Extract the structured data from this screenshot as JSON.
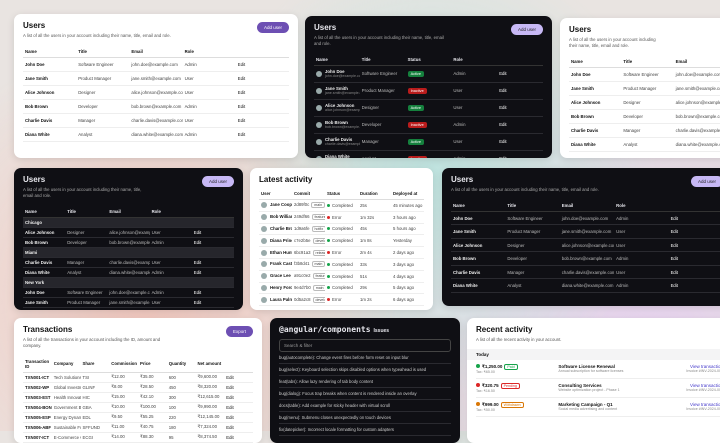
{
  "users_light": {
    "title": "Users",
    "description": "A list of all the users in your account including their name, title, email and role.",
    "button": "Add user",
    "columns": [
      "Name",
      "Title",
      "Email",
      "Role"
    ],
    "rows": [
      [
        "John Doe",
        "Software Engineer",
        "john.doe@example.com",
        "Admin",
        "Edit"
      ],
      [
        "Jane Smith",
        "Product Manager",
        "jane.smith@example.com",
        "User",
        "Edit"
      ],
      [
        "Alice Johnson",
        "Designer",
        "alice.johnson@example.com",
        "User",
        "Edit"
      ],
      [
        "Bob Brown",
        "Developer",
        "bob.brown@example.com",
        "Admin",
        "Edit"
      ],
      [
        "Charlie Davis",
        "Manager",
        "charlie.davis@example.com",
        "User",
        "Edit"
      ],
      [
        "Diana White",
        "Analyst",
        "diana.white@example.com",
        "Admin",
        "Edit"
      ]
    ]
  },
  "users_dark": {
    "title": "Users",
    "description": "A list of all the users in your account including their name, title, email and role.",
    "button": "Add user",
    "columns": [
      "Name",
      "Title",
      "Status",
      "Role"
    ],
    "rows": [
      [
        {
          "text": "John Doe",
          "sub": "john.doe@example.com"
        },
        "Software Engineer",
        {
          "label": "Active",
          "color": "#15803d"
        },
        "Admin",
        "Edit"
      ],
      [
        {
          "text": "Jane Smith",
          "sub": "jane.smith@example.com"
        },
        "Product Manager",
        {
          "label": "Inactive",
          "color": "#b91c1c"
        },
        "User",
        "Edit"
      ],
      [
        {
          "text": "Alice Johnson",
          "sub": "alice.johnson@example.com"
        },
        "Designer",
        {
          "label": "Active",
          "color": "#15803d"
        },
        "User",
        "Edit"
      ],
      [
        {
          "text": "Bob Brown",
          "sub": "bob.brown@example.com"
        },
        "Developer",
        {
          "label": "Inactive",
          "color": "#b91c1c"
        },
        "Admin",
        "Edit"
      ],
      [
        {
          "text": "Charlie Davis",
          "sub": "charlie.davis@example.com"
        },
        "Manager",
        {
          "label": "Active",
          "color": "#15803d"
        },
        "User",
        "Edit"
      ],
      [
        {
          "text": "Diana White",
          "sub": "diana.white@example.com"
        },
        "Analyst",
        {
          "label": "Inactive",
          "color": "#b91c1c"
        },
        "Admin",
        "Edit"
      ]
    ]
  },
  "users_partial": {
    "title": "Users",
    "description": "A list of all the users in your account including their name, title, email and role.",
    "columns": [
      "Name",
      "Title",
      "Email"
    ],
    "rows": [
      [
        "John Doe",
        "Software Engineer",
        "john.doe@example.com"
      ],
      [
        "Jane Smith",
        "Product Manager",
        "jane.smith@example.com"
      ],
      [
        "Alice Johnson",
        "Designer",
        "alice.johnson@example.com"
      ],
      [
        "Bob Brown",
        "Developer",
        "bob.brown@example.com"
      ],
      [
        "Charlie Davis",
        "Manager",
        "charlie.davis@example.com"
      ],
      [
        "Diana White",
        "Analyst",
        "diana.white@example.com"
      ]
    ]
  },
  "users_grouped": {
    "title": "Users",
    "description": "A list of all the users in your account including their name, title, email and role.",
    "button": "Add user",
    "columns": [
      "Name",
      "Title",
      "Email",
      "Role"
    ],
    "groups": [
      {
        "name": "Chicago",
        "rows": [
          [
            "Alice Johnson",
            "Designer",
            "alice.johnson@example.com",
            "User",
            "Edit"
          ],
          [
            "Bob Brown",
            "Developer",
            "bob.brown@example.com",
            "Admin",
            "Edit"
          ]
        ]
      },
      {
        "name": "Miami",
        "rows": [
          [
            "Charlie Davis",
            "Manager",
            "charlie.davis@example.com",
            "User",
            "Edit"
          ],
          [
            "Diana White",
            "Analyst",
            "diana.white@example.com",
            "Admin",
            "Edit"
          ]
        ]
      },
      {
        "name": "New York",
        "rows": [
          [
            "John Doe",
            "Software Engineer",
            "john.doe@example.com",
            "Admin",
            "Edit"
          ],
          [
            "Jane Smith",
            "Product Manager",
            "jane.smith@example.com",
            "User",
            "Edit"
          ]
        ]
      }
    ]
  },
  "latest_activity": {
    "title": "Latest activity",
    "columns": [
      "User",
      "Commit",
      "Status",
      "Duration",
      "Deployed at"
    ],
    "rows": [
      [
        "Jane Cooper",
        {
          "text": "2d89f0c",
          "tag": "main"
        },
        {
          "label": "Completed",
          "color": "#16a34a"
        },
        "25s",
        "45 minutes ago"
      ],
      [
        "Bob Williams",
        {
          "text": "249df66",
          "tag": "feature/auth"
        },
        {
          "label": "Error",
          "color": "#dc2626"
        },
        "1m 32s",
        "3 hours ago"
      ],
      [
        "Charlie Brown",
        {
          "text": "1d9a6fe",
          "tag": "hotfix"
        },
        {
          "label": "Completed",
          "color": "#16a34a"
        },
        "45s",
        "5 hours ago"
      ],
      [
        "Diana Prince",
        {
          "text": "c7e2b5e",
          "tag": "develop"
        },
        {
          "label": "Completed",
          "color": "#16a34a"
        },
        "1m 8s",
        "Yesterday"
      ],
      [
        "Ethan Hunt",
        {
          "text": "6bc91a3",
          "tag": "release"
        },
        {
          "label": "Error",
          "color": "#dc2626"
        },
        "2m 4s",
        "2 days ago"
      ],
      [
        "Frank Castle",
        {
          "text": "f3b8d41",
          "tag": "main"
        },
        {
          "label": "Completed",
          "color": "#16a34a"
        },
        "33s",
        "3 days ago"
      ],
      [
        "Grace Lee",
        {
          "text": "a91c0e2",
          "tag": "feature/ui"
        },
        {
          "label": "Completed",
          "color": "#16a34a"
        },
        "51s",
        "4 days ago"
      ],
      [
        "Henry Ford",
        {
          "text": "9e4d7b0",
          "tag": "main"
        },
        {
          "label": "Completed",
          "color": "#16a34a"
        },
        "29s",
        "5 days ago"
      ],
      [
        "Laura Palmer",
        {
          "text": "0d5a2c8",
          "tag": "develop"
        },
        {
          "label": "Error",
          "color": "#dc2626"
        },
        "1m 2s",
        "6 days ago"
      ]
    ]
  },
  "users_dark_wide": {
    "title": "Users",
    "description": "A list of all the users in your account including their name, title, email and role.",
    "button": "Add user",
    "columns": [
      "Name",
      "Title",
      "Email",
      "Role"
    ],
    "rows": [
      [
        "John Doe",
        "Software Engineer",
        "john.doe@example.com",
        "Admin",
        "Edit"
      ],
      [
        "Jane Smith",
        "Product Manager",
        "jane.smith@example.com",
        "User",
        "Edit"
      ],
      [
        "Alice Johnson",
        "Designer",
        "alice.johnson@example.com",
        "User",
        "Edit"
      ],
      [
        "Bob Brown",
        "Developer",
        "bob.brown@example.com",
        "Admin",
        "Edit"
      ],
      [
        "Charlie Davis",
        "Manager",
        "charlie.davis@example.com",
        "User",
        "Edit"
      ],
      [
        "Diana White",
        "Analyst",
        "diana.white@example.com",
        "Admin",
        "Edit"
      ]
    ]
  },
  "transactions": {
    "title": "Transactions",
    "description": "A list of all the transactions in your account including the ID, amount and company.",
    "button": "Export",
    "columns": [
      "Transaction ID",
      "Company",
      "Share",
      "Commission",
      "Price",
      "Quantity",
      "Net amount"
    ],
    "rows": [
      [
        "TXN001-ICT",
        "Tech Solutions Inc.",
        "TSI",
        "₹12.00",
        "₹35.00",
        "600",
        "₹9,600.00",
        "Edit"
      ],
      [
        "TXN002-WP",
        "Global Investments Ltd.",
        "GLINF",
        "₹8.00",
        "₹28.50",
        "450",
        "₹8,320.00",
        "Edit"
      ],
      [
        "TXN003-EST",
        "Health Innovations Corp.",
        "HIC",
        "₹15.00",
        "₹42.10",
        "300",
        "₹12,615.00",
        "Edit"
      ],
      [
        "TXN004-BON",
        "Government Bonds Agency",
        "GBA",
        "₹10.00",
        "₹100.00",
        "100",
        "₹9,990.00",
        "Edit"
      ],
      [
        "TXN005-ESP",
        "Energy Dynamics LLC",
        "EDL",
        "₹9.50",
        "₹55.25",
        "220",
        "₹12,145.00",
        "Edit"
      ],
      [
        "TXN006-ABF",
        "Sustainable Future Fund",
        "SFFUND",
        "₹11.00",
        "₹40.75",
        "180",
        "₹7,324.00",
        "Edit"
      ],
      [
        "TXN007-ICT",
        "E-Commerce Giants Inc.",
        "ECGI",
        "₹14.00",
        "₹88.30",
        "95",
        "₹8,374.50",
        "Edit"
      ]
    ]
  },
  "issues": {
    "title": "@angular/components",
    "suffix": "Issues",
    "search": "Search & filter",
    "items": [
      "bug(autocomplete): Change event fires before form reset on input blur",
      "bug(select): Keyboard selection skips disabled options when typeahead is used",
      "feat(tabs): Allow lazy rendering of tab body content",
      "bug(dialog): Focus trap breaks when content is rendered inside an overlay",
      "docs(table): Add example for sticky header with virtual scroll",
      "bug(menu): Submenu closes unexpectedly on touch devices",
      "fix(datepicker): Incorrect locale formatting for custom adapters"
    ]
  },
  "recent_activity": {
    "title": "Recent activity",
    "description": "A list of all the recent activity in your account.",
    "section": "Today",
    "items": [
      {
        "amount": "₹1,250.00",
        "badge": "Paid",
        "color": "#16a34a",
        "tax": "Tax: ₹65.00",
        "name": "Software License Renewal",
        "detail": "Annual subscription for software licenses",
        "link": "View transaction",
        "invoice": "Invoice #INV-2024-001"
      },
      {
        "amount": "₹320.75",
        "badge": "Pending",
        "color": "#dc2626",
        "tax": "Tax: ₹16.50",
        "name": "Consulting Services",
        "detail": "Website optimization project - Phase 1",
        "link": "View transaction",
        "invoice": "Invoice #INV-2024-002"
      },
      {
        "amount": "₹999.00",
        "badge": "Withdrawn",
        "color": "#d97706",
        "tax": "Tax: ₹50.00",
        "name": "Marketing Campaign - Q1",
        "detail": "Social media advertising and content",
        "link": "View transaction",
        "invoice": "Invoice #INV-2024-003"
      }
    ]
  }
}
